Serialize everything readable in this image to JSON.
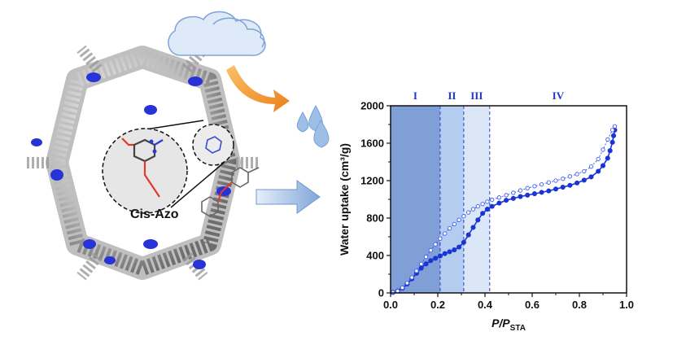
{
  "illustration": {
    "molecule_label": "Cis-Azo"
  },
  "colors": {
    "adsorption": "#1a35d6",
    "desorption": "#3f5df0",
    "region_I": "#7f9fd6",
    "region_II": "#b4cdee",
    "region_III": "#dbe7f7",
    "arrow_orange": "#f39a2b",
    "arrow_blue": "#a9c4e6",
    "cloud": "#c8dcf2",
    "drop": "#8fb4e0"
  },
  "chart_data": {
    "type": "line",
    "title": "",
    "xlabel_main": "P/P",
    "xlabel_sub": "STA",
    "ylabel": "Water uptake (cm³/g)",
    "xlim": [
      0.0,
      1.0
    ],
    "ylim": [
      0,
      2000
    ],
    "x_ticks": [
      "0.0",
      "0.2",
      "0.4",
      "0.6",
      "0.8",
      "1.0"
    ],
    "y_ticks": [
      "0",
      "400",
      "800",
      "1200",
      "1600",
      "2000"
    ],
    "grid": false,
    "legend": "none",
    "regions": [
      {
        "label": "I",
        "from": 0.0,
        "to": 0.21
      },
      {
        "label": "II",
        "from": 0.21,
        "to": 0.31
      },
      {
        "label": "III",
        "from": 0.31,
        "to": 0.42
      },
      {
        "label": "IV",
        "from": 0.42,
        "to": 1.0
      }
    ],
    "series": [
      {
        "style": "filled-marker",
        "x": [
          0.01,
          0.03,
          0.05,
          0.07,
          0.09,
          0.11,
          0.13,
          0.15,
          0.17,
          0.19,
          0.21,
          0.23,
          0.25,
          0.27,
          0.29,
          0.31,
          0.33,
          0.35,
          0.37,
          0.39,
          0.41,
          0.43,
          0.46,
          0.49,
          0.52,
          0.55,
          0.58,
          0.61,
          0.64,
          0.67,
          0.7,
          0.73,
          0.76,
          0.79,
          0.82,
          0.85,
          0.88,
          0.9,
          0.92,
          0.93,
          0.94,
          0.945,
          0.95
        ],
        "y": [
          5,
          20,
          50,
          95,
          150,
          210,
          265,
          310,
          345,
          370,
          395,
          420,
          440,
          460,
          490,
          540,
          620,
          700,
          780,
          850,
          895,
          925,
          960,
          990,
          1010,
          1030,
          1045,
          1060,
          1075,
          1090,
          1110,
          1130,
          1150,
          1175,
          1205,
          1240,
          1300,
          1360,
          1440,
          1520,
          1610,
          1680,
          1740
        ]
      },
      {
        "style": "open-marker",
        "x": [
          0.95,
          0.94,
          0.92,
          0.9,
          0.88,
          0.85,
          0.82,
          0.79,
          0.76,
          0.73,
          0.7,
          0.67,
          0.64,
          0.61,
          0.58,
          0.55,
          0.52,
          0.49,
          0.46,
          0.43,
          0.41,
          0.39,
          0.37,
          0.35,
          0.33,
          0.31,
          0.29,
          0.27,
          0.25,
          0.23,
          0.21,
          0.19,
          0.17,
          0.15,
          0.13,
          0.11,
          0.09,
          0.07,
          0.05,
          0.03,
          0.01
        ],
        "y": [
          1780,
          1740,
          1640,
          1530,
          1430,
          1350,
          1300,
          1270,
          1245,
          1220,
          1200,
          1180,
          1160,
          1140,
          1120,
          1095,
          1070,
          1045,
          1020,
          995,
          975,
          950,
          925,
          895,
          860,
          820,
          780,
          735,
          690,
          635,
          580,
          520,
          455,
          385,
          310,
          235,
          165,
          105,
          55,
          20,
          5
        ]
      }
    ]
  }
}
